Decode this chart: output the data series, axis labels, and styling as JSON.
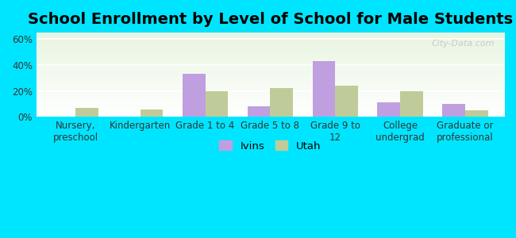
{
  "title": "School Enrollment by Level of School for Male Students",
  "categories": [
    "Nursery,\npreschool",
    "Kindergarten",
    "Grade 1 to 4",
    "Grade 5 to 8",
    "Grade 9 to\n12",
    "College\nundergrad",
    "Graduate or\nprofessional"
  ],
  "ivins_values": [
    0,
    0,
    33,
    8,
    43,
    11,
    10
  ],
  "utah_values": [
    7,
    6,
    20,
    22,
    24,
    20,
    5
  ],
  "ivins_color": "#bf9fdf",
  "utah_color": "#bfcc99",
  "background_outer": "#00e5ff",
  "background_inner_top": "#e8f5e0",
  "background_inner_bottom": "#ffffff",
  "ylabel_ticks": [
    "0%",
    "20%",
    "40%",
    "60%"
  ],
  "ytick_vals": [
    0,
    20,
    40,
    60
  ],
  "ylim": [
    0,
    65
  ],
  "title_fontsize": 14,
  "tick_fontsize": 8.5,
  "legend_labels": [
    "Ivins",
    "Utah"
  ],
  "bar_width": 0.35,
  "watermark": "City-Data.com"
}
